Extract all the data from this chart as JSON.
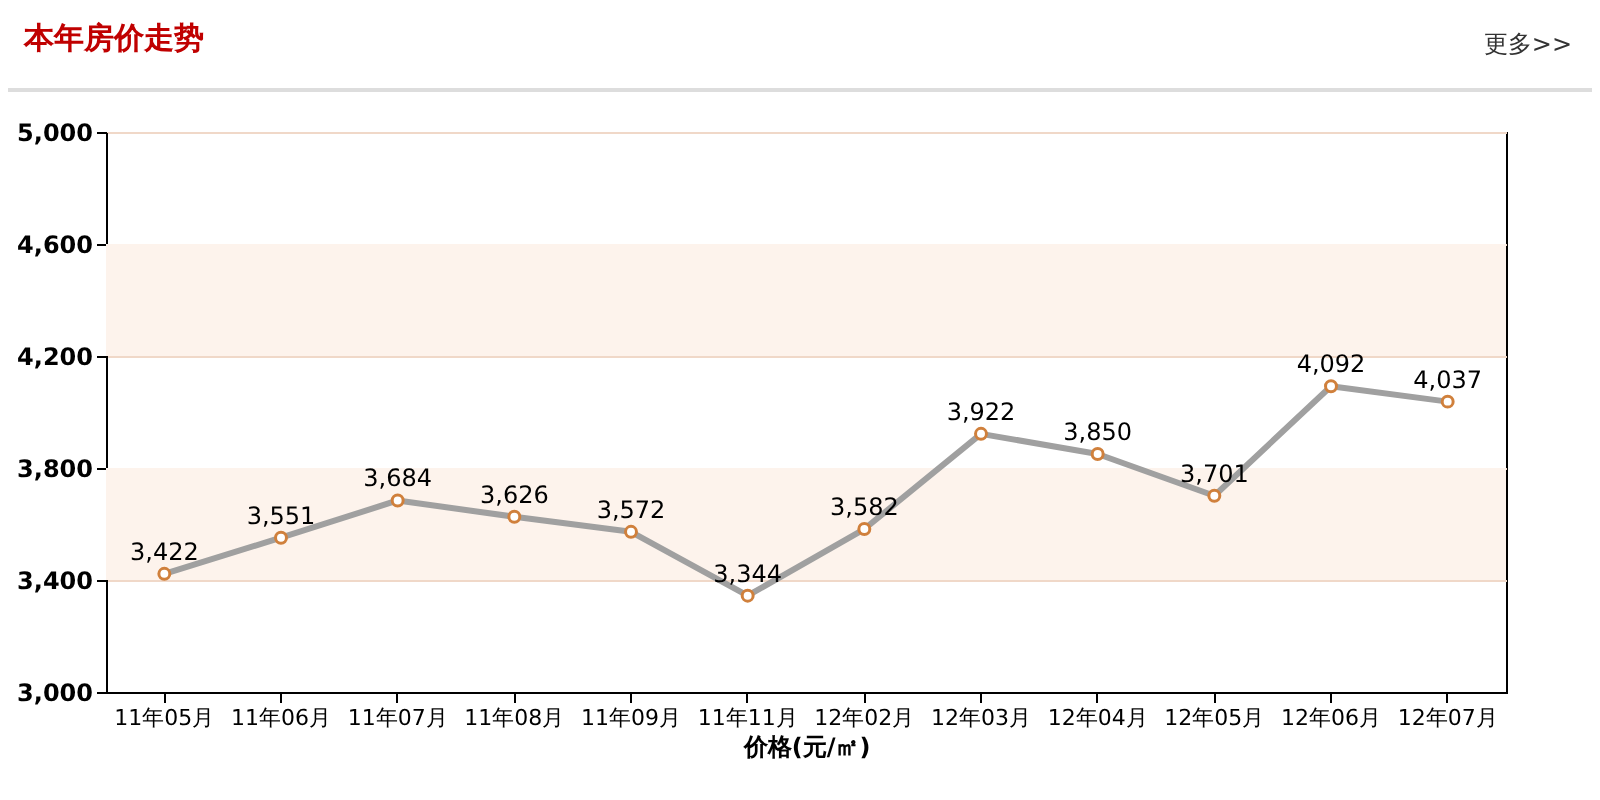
{
  "chart_data": {
    "type": "line",
    "title": "本年房价走势",
    "xlabel": "价格(元/㎡)",
    "annotations": [
      "更多>>"
    ],
    "categories": [
      "11年05月",
      "11年06月",
      "11年07月",
      "11年08月",
      "11年09月",
      "11年11月",
      "12年02月",
      "12年03月",
      "12年04月",
      "12年05月",
      "12年06月",
      "12年07月"
    ],
    "series": [
      {
        "color": "#a0a0a0",
        "values": [
          3422,
          3551,
          3684,
          3626,
          3572,
          3344,
          3582,
          3922,
          3850,
          3701,
          4092,
          4037
        ],
        "value_labels": [
          "3,422",
          "3,551",
          "3,684",
          "3,626",
          "3,572",
          "3,344",
          "3,582",
          "3,922",
          "3,850",
          "3,701",
          "4,092",
          "4,037"
        ]
      }
    ],
    "ylim": [
      3000,
      5000
    ],
    "yticks": [
      {
        "value": 3000,
        "label": "3,000"
      },
      {
        "value": 3400,
        "label": "3,400"
      },
      {
        "value": 3800,
        "label": "3,800"
      },
      {
        "value": 4200,
        "label": "4,200"
      },
      {
        "value": 4600,
        "label": "4,600"
      },
      {
        "value": 5000,
        "label": "5,000"
      }
    ],
    "bands": [
      {
        "axis": "y",
        "from": 3400,
        "to": 3800,
        "color": "#fdf3ec"
      },
      {
        "axis": "y",
        "from": 4200,
        "to": 4600,
        "color": "#fdf3ec"
      }
    ],
    "grid": "y",
    "marker": "circle",
    "line_style": "solid"
  }
}
